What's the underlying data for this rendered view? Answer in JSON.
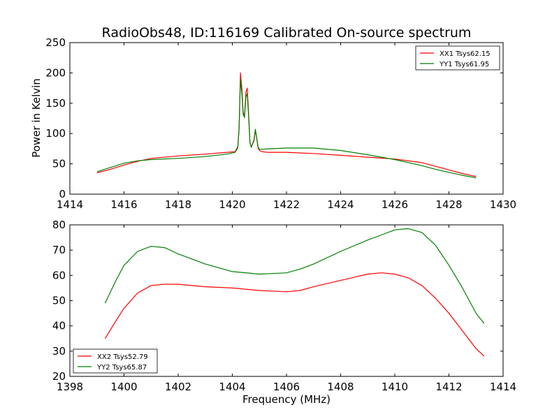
{
  "chart_data": [
    {
      "type": "line",
      "title": "RadioObs48, ID:116169 Calibrated On-source spectrum",
      "xlabel": "",
      "ylabel": "Power in Kelvin",
      "xlim": [
        1414,
        1430
      ],
      "ylim": [
        0,
        250
      ],
      "xticks": [
        "1414",
        "1416",
        "1418",
        "1420",
        "1422",
        "1424",
        "1426",
        "1428",
        "1430"
      ],
      "yticks": [
        "0",
        "50",
        "100",
        "150",
        "200",
        "250"
      ],
      "legend_position": "top-right",
      "grid": false,
      "series": [
        {
          "name": "XX1 Tsys62.15",
          "color": "#ff0000",
          "x": [
            1415.0,
            1415.5,
            1416.0,
            1416.5,
            1417.0,
            1418.0,
            1419.0,
            1419.8,
            1420.1,
            1420.2,
            1420.25,
            1420.3,
            1420.35,
            1420.4,
            1420.45,
            1420.5,
            1420.55,
            1420.6,
            1420.65,
            1420.7,
            1420.8,
            1420.85,
            1420.9,
            1420.95,
            1421.0,
            1421.1,
            1421.3,
            1422.0,
            1423.0,
            1424.0,
            1425.0,
            1426.0,
            1427.0,
            1427.5,
            1428.0,
            1428.5,
            1429.0
          ],
          "values": [
            35,
            41,
            48,
            54,
            59,
            63,
            66,
            69,
            70,
            78,
            110,
            200,
            175,
            135,
            128,
            168,
            175,
            135,
            85,
            78,
            88,
            105,
            92,
            76,
            72,
            70,
            69,
            69,
            67,
            64,
            61,
            58,
            52,
            46,
            40,
            34,
            29
          ]
        },
        {
          "name": "YY1 Tsys61.95",
          "color": "#008000",
          "x": [
            1415.0,
            1415.5,
            1416.0,
            1416.5,
            1417.0,
            1418.0,
            1419.0,
            1419.8,
            1420.1,
            1420.2,
            1420.25,
            1420.3,
            1420.35,
            1420.4,
            1420.45,
            1420.5,
            1420.55,
            1420.6,
            1420.65,
            1420.7,
            1420.8,
            1420.85,
            1420.9,
            1420.95,
            1421.0,
            1421.5,
            1422.0,
            1423.0,
            1424.0,
            1425.0,
            1426.0,
            1427.0,
            1427.5,
            1428.0,
            1428.5,
            1429.0
          ],
          "values": [
            37,
            44,
            51,
            55,
            57,
            59,
            62,
            66,
            69,
            76,
            108,
            190,
            165,
            132,
            126,
            160,
            166,
            130,
            85,
            77,
            90,
            107,
            93,
            78,
            74,
            75,
            76,
            76,
            72,
            65,
            57,
            47,
            41,
            36,
            31,
            27
          ]
        }
      ]
    },
    {
      "type": "line",
      "title": "",
      "xlabel": "Frequency (MHz)",
      "ylabel": "",
      "xlim": [
        1398,
        1414
      ],
      "ylim": [
        20,
        80
      ],
      "xticks": [
        "1398",
        "1400",
        "1402",
        "1404",
        "1406",
        "1408",
        "1410",
        "1412",
        "1414"
      ],
      "yticks": [
        "20",
        "30",
        "40",
        "50",
        "60",
        "70",
        "80"
      ],
      "legend_position": "bottom-left",
      "grid": false,
      "series": [
        {
          "name": "XX2 Tsys52.79",
          "color": "#ff0000",
          "x": [
            1399.3,
            1399.7,
            1400.0,
            1400.5,
            1401.0,
            1401.5,
            1402.0,
            1403.0,
            1404.0,
            1405.0,
            1406.0,
            1406.5,
            1407.0,
            1408.0,
            1409.0,
            1409.5,
            1410.0,
            1410.5,
            1411.0,
            1411.5,
            1412.0,
            1412.5,
            1413.0,
            1413.3
          ],
          "values": [
            35,
            42,
            47,
            53,
            56,
            56.5,
            56.5,
            55.5,
            55,
            54,
            53.5,
            54,
            55.5,
            58,
            60.5,
            61,
            60.5,
            59,
            56,
            51,
            45,
            38,
            31,
            28
          ]
        },
        {
          "name": "YY2 Tsys65.87",
          "color": "#008000",
          "x": [
            1399.3,
            1399.7,
            1400.0,
            1400.5,
            1401.0,
            1401.5,
            1402.0,
            1403.0,
            1404.0,
            1405.0,
            1406.0,
            1406.5,
            1407.0,
            1408.0,
            1409.0,
            1409.5,
            1410.0,
            1410.5,
            1411.0,
            1411.5,
            1412.0,
            1412.5,
            1413.0,
            1413.3
          ],
          "values": [
            49,
            58,
            64,
            69.5,
            71.5,
            71,
            68.5,
            64.5,
            61.5,
            60.5,
            61,
            62.5,
            64.5,
            69.5,
            74,
            76,
            78,
            78.5,
            77,
            72,
            64,
            55,
            45,
            41
          ]
        }
      ]
    }
  ]
}
